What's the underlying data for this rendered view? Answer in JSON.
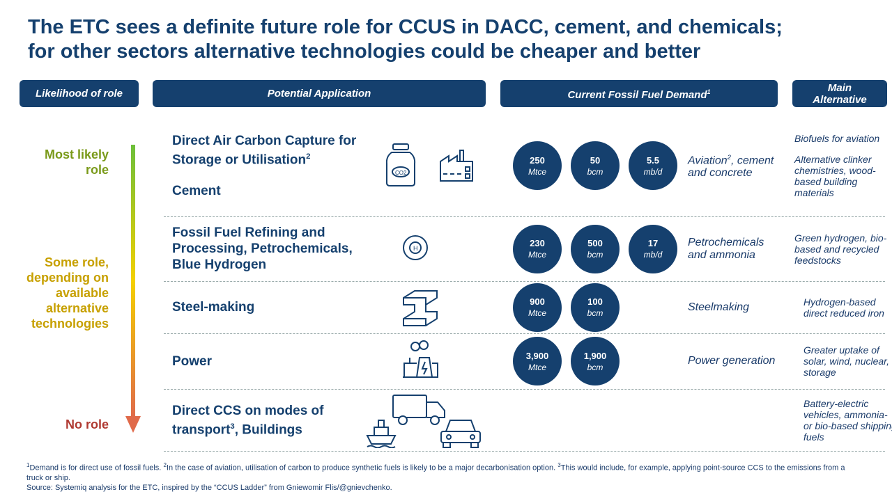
{
  "title": [
    "The ETC sees a definite future role for CCUS in DACC, cement, and chemicals;",
    "for other sectors alternative technologies could be cheaper and better"
  ],
  "headers": [
    {
      "text": "Likelihood of role"
    },
    {
      "text": "Potential Application"
    },
    {
      "text": "Current Fossil Fuel Demand",
      "sup": "1"
    },
    {
      "text": "Main Alternative"
    }
  ],
  "likelihood": [
    "Most likely role",
    "Some role, depending on available alternative technologies",
    "No role"
  ],
  "rows": [
    {
      "application": [
        {
          "text": "Direct Air Carbon Capture for Storage or Utilisation",
          "sup": "2"
        },
        {
          "text": "Cement"
        }
      ],
      "demand": [
        {
          "value": "250",
          "unit": "Mtce"
        },
        {
          "value": "50",
          "unit": "bcm"
        },
        {
          "value": "5.5",
          "unit": "mb/d"
        }
      ],
      "sector": {
        "text": "Aviation",
        "sup": "2",
        "after": ", cement and concrete"
      },
      "alternative": [
        "Biofuels for aviation",
        "Alternative clinker chemistries, wood-based building materials"
      ]
    },
    {
      "application": [
        {
          "text": "Fossil Fuel Refining and Processing, Petrochemicals, Blue Hydrogen"
        }
      ],
      "demand": [
        {
          "value": "230",
          "unit": "Mtce"
        },
        {
          "value": "500",
          "unit": "bcm"
        },
        {
          "value": "17",
          "unit": "mb/d"
        }
      ],
      "sector": {
        "text": "Petrochemicals and ammonia"
      },
      "alternative": [
        "Green hydrogen, bio-based and recycled feedstocks"
      ]
    },
    {
      "application": [
        {
          "text": "Steel-making"
        }
      ],
      "demand": [
        {
          "value": "900",
          "unit": "Mtce"
        },
        {
          "value": "100",
          "unit": "bcm"
        }
      ],
      "sector": {
        "text": "Steelmaking"
      },
      "alternative": [
        "Hydrogen-based direct reduced iron"
      ]
    },
    {
      "application": [
        {
          "text": "Power"
        }
      ],
      "demand": [
        {
          "value": "3,900",
          "unit": "Mtce"
        },
        {
          "value": "1,900",
          "unit": "bcm"
        }
      ],
      "sector": {
        "text": "Power generation"
      },
      "alternative": [
        "Greater uptake of solar, wind, nuclear, storage"
      ]
    },
    {
      "application": [
        {
          "text": "Direct CCS on modes of transport",
          "sup": "3",
          "after": ", Buildings"
        }
      ],
      "alternative": [
        "Battery-electric vehicles, ammonia- or bio-based shipping fuels"
      ]
    }
  ],
  "footnotes": [
    {
      "sup": "1",
      "text": "Demand is for direct use of fossil fuels."
    },
    {
      "sup": "2",
      "text": "In the case of aviation, utilisation of carbon to produce synthetic fuels is likely to be a major decarbonisation option."
    },
    {
      "sup": "3",
      "text": "This would include, for example, applying point-source CCS to the emissions from a truck or ship."
    }
  ],
  "source": "Source: Systemiq analysis for the ETC, inspired by the “CCUS Ladder” from Gniewomir Flis/@gnievchenko."
}
